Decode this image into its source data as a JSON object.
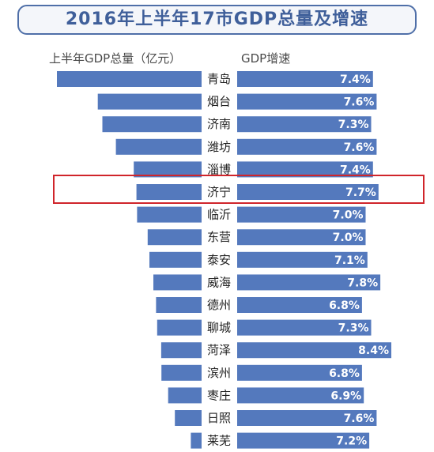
{
  "chart_data": {
    "type": "bar",
    "title": "2016年上半年17市GDP总量及增速",
    "gdp_label": "上半年GDP总量（亿元）",
    "growth_label": "GDP增速",
    "categories": [
      "青岛",
      "烟台",
      "济南",
      "潍坊",
      "淄博",
      "济宁",
      "临沂",
      "东营",
      "泰安",
      "威海",
      "德州",
      "聊城",
      "菏泽",
      "滨州",
      "枣庄",
      "日照",
      "莱芜"
    ],
    "series": [
      {
        "name": "上半年GDP总量（亿元）",
        "values": [
          4520.3,
          3242.69,
          3100.15,
          2676.8,
          2118.94,
          2035.09,
          2015.8,
          1683.69,
          1629.3,
          1506.36,
          1422.19,
          1389.2,
          1263.08,
          1255.77,
          1045.04,
          833.7,
          335.26
        ]
      },
      {
        "name": "GDP增速",
        "values": [
          7.4,
          7.6,
          7.3,
          7.6,
          7.4,
          7.7,
          7.0,
          7.0,
          7.1,
          7.8,
          6.8,
          7.3,
          8.4,
          6.8,
          6.9,
          7.6,
          7.2
        ]
      }
    ],
    "gdp_display": [
      "4520.3",
      "3242.69",
      "3100.15",
      "2676.8",
      "2118.94",
      "2035.09",
      "2015.8",
      "1683.69",
      "1629.3",
      "1506.36",
      "1422.19",
      "1389.2",
      "1263.08",
      "1255.77",
      "1045.04",
      "833.7",
      "335.26"
    ],
    "growth_display": [
      "7.4%",
      "7.6%",
      "7.3%",
      "7.6%",
      "7.4%",
      "7.7%",
      "7.0%",
      "7.0%",
      "7.1%",
      "7.8%",
      "6.8%",
      "7.3%",
      "8.4%",
      "6.8%",
      "6.9%",
      "7.6%",
      "7.2%"
    ],
    "highlighted_category": "济宁",
    "colors": {
      "bar": "#5479bd",
      "highlight_border": "#d0252b",
      "title": "#3f5f9a"
    }
  }
}
